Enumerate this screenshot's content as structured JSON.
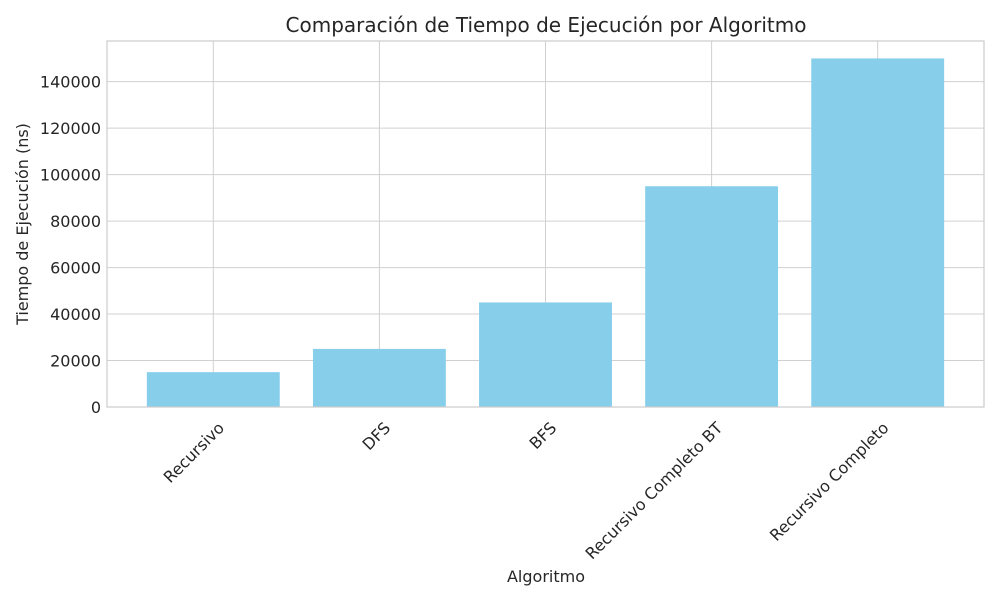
{
  "chart_data": {
    "type": "bar",
    "title": "Comparación de Tiempo de Ejecución por Algoritmo",
    "xlabel": "Algoritmo",
    "ylabel": "Tiempo de Ejecución (ns)",
    "categories": [
      "Recursivo",
      "DFS",
      "BFS",
      "Recursivo Completo BT",
      "Recursivo Completo"
    ],
    "values": [
      15000,
      25000,
      45000,
      95000,
      150000
    ],
    "ylim": [
      0,
      157500
    ],
    "yticks": [
      0,
      20000,
      40000,
      60000,
      80000,
      100000,
      120000,
      140000
    ],
    "grid": true,
    "bar_color": "#87CEEB"
  }
}
